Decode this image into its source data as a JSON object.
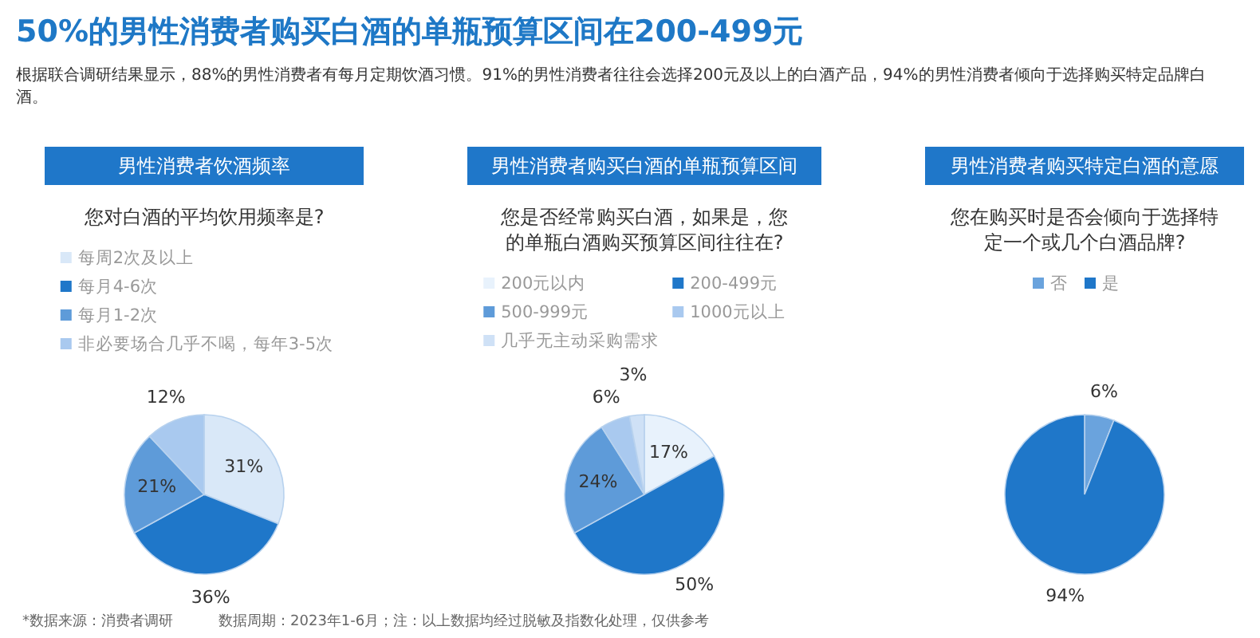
{
  "chart_data": [
    {
      "type": "other",
      "title": "50%的男性消费者购买白酒的单瓶预算区间在200-499元",
      "subtitle": "根据联合调研结果显示，88%的男性消费者有每月定期饮酒习惯。91%的男性消费者往往会选择200元及以上的白酒产品，94%的男性消费者倾向于选择购买特定品牌白酒。",
      "annotations": [
        "*数据来源：消费者调研",
        "数据周期：2023年1-6月；注：以上数据均经过脱敏及指数化处理，仅供参考"
      ]
    },
    {
      "type": "pie",
      "title": "男性消费者饮酒频率",
      "subtitle": "您对白酒的平均饮用频率是?",
      "categories": [
        "每周2次及以上",
        "每月4-6次",
        "每月1-2次",
        "非必要场合几乎不喝，每年3-5次"
      ],
      "values": [
        31,
        36,
        21,
        12
      ],
      "value_labels": [
        "31%",
        "36%",
        "21%",
        "12%"
      ],
      "colors": [
        "#d9e8f8",
        "#1f77c9",
        "#5e9bd9",
        "#a9c9ef"
      ],
      "legend": "top"
    },
    {
      "type": "pie",
      "title": "男性消费者购买白酒的单瓶预算区间",
      "subtitle": "您是否经常购买白酒，如果是，您的单瓶白酒购买预算区间往往在?",
      "categories": [
        "200元以内",
        "200-499元",
        "500-999元",
        "1000元以上",
        "几乎无主动采购需求"
      ],
      "values": [
        17,
        50,
        24,
        6,
        3
      ],
      "value_labels": [
        "17%",
        "50%",
        "24%",
        "6%",
        "3%"
      ],
      "colors": [
        "#e8f2fc",
        "#1f77c9",
        "#5e9bd9",
        "#a9c9ef",
        "#cfe1f6"
      ],
      "legend": "top"
    },
    {
      "type": "pie",
      "title": "男性消费者购买特定白酒的意愿",
      "subtitle": "您在购买时是否会倾向于选择特定一个或几个白酒品牌?",
      "categories": [
        "否",
        "是"
      ],
      "values": [
        6,
        94
      ],
      "value_labels": [
        "6%",
        "94%"
      ],
      "colors": [
        "#6aa3dd",
        "#1f77c9"
      ],
      "legend": "top"
    }
  ]
}
